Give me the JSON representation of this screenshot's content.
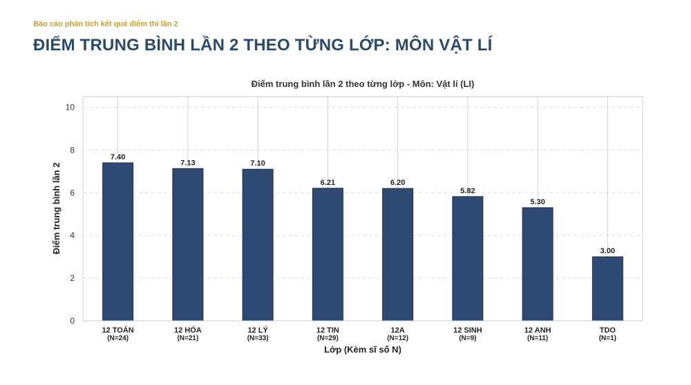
{
  "header": {
    "report_label": "Báo cáo phân tích kết quả điểm thi lần 2",
    "page_title": "ĐIỂM TRUNG BÌNH LẦN 2 THEO TỪNG LỚP: MÔN VẬT LÍ"
  },
  "chart_data": {
    "type": "bar",
    "title": "Điểm trung bình lần 2 theo từng lớp - Môn: Vật lí (LI)",
    "xlabel": "Lớp (Kèm sĩ số N)",
    "ylabel": "Điểm trung bình lần 2",
    "ylim": [
      0,
      10.5
    ],
    "yticks": [
      0,
      2,
      4,
      6,
      8,
      10
    ],
    "grid": true,
    "categories": [
      "12 TOÁN",
      "12 HÓA",
      "12 LÝ",
      "12 TIN",
      "12A",
      "12 SINH",
      "12 ANH",
      "TDO"
    ],
    "counts": [
      "(N=24)",
      "(N=21)",
      "(N=33)",
      "(N=29)",
      "(N=12)",
      "(N=9)",
      "(N=11)",
      "(N=1)"
    ],
    "values": [
      7.4,
      7.13,
      7.1,
      6.21,
      6.2,
      5.82,
      5.3,
      3.0
    ],
    "value_labels": [
      "7.40",
      "7.13",
      "7.10",
      "6.21",
      "6.20",
      "5.82",
      "5.30",
      "3.00"
    ],
    "bar_color": "#2e4a72"
  }
}
